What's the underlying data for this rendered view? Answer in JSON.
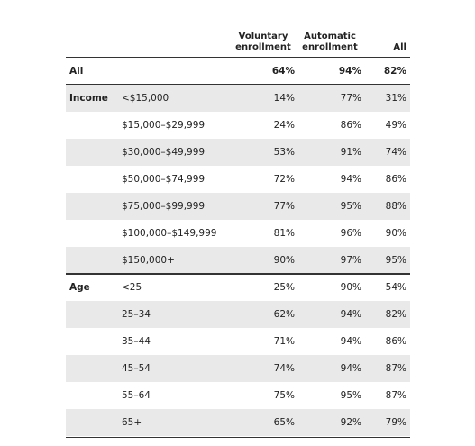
{
  "table": {
    "columns": [
      "Voluntary enrollment",
      "Automatic enrollment",
      "All"
    ],
    "total": {
      "label": "All",
      "values": [
        "64%",
        "94%",
        "82%"
      ]
    },
    "groups": [
      {
        "label": "Income",
        "rows": [
          {
            "label": "<$15,000",
            "values": [
              "14%",
              "77%",
              "31%"
            ]
          },
          {
            "label": "$15,000–$29,999",
            "values": [
              "24%",
              "86%",
              "49%"
            ]
          },
          {
            "label": "$30,000–$49,999",
            "values": [
              "53%",
              "91%",
              "74%"
            ]
          },
          {
            "label": "$50,000–$74,999",
            "values": [
              "72%",
              "94%",
              "86%"
            ]
          },
          {
            "label": "$75,000–$99,999",
            "values": [
              "77%",
              "95%",
              "88%"
            ]
          },
          {
            "label": "$100,000–$149,999",
            "values": [
              "81%",
              "96%",
              "90%"
            ]
          },
          {
            "label": "$150,000+",
            "values": [
              "90%",
              "97%",
              "95%"
            ]
          }
        ]
      },
      {
        "label": "Age",
        "rows": [
          {
            "label": "<25",
            "values": [
              "25%",
              "90%",
              "54%"
            ]
          },
          {
            "label": "25–34",
            "values": [
              "62%",
              "94%",
              "82%"
            ]
          },
          {
            "label": "35–44",
            "values": [
              "71%",
              "94%",
              "86%"
            ]
          },
          {
            "label": "45–54",
            "values": [
              "74%",
              "94%",
              "87%"
            ]
          },
          {
            "label": "55–64",
            "values": [
              "75%",
              "95%",
              "87%"
            ]
          },
          {
            "label": "65+",
            "values": [
              "65%",
              "92%",
              "79%"
            ]
          }
        ]
      }
    ]
  }
}
